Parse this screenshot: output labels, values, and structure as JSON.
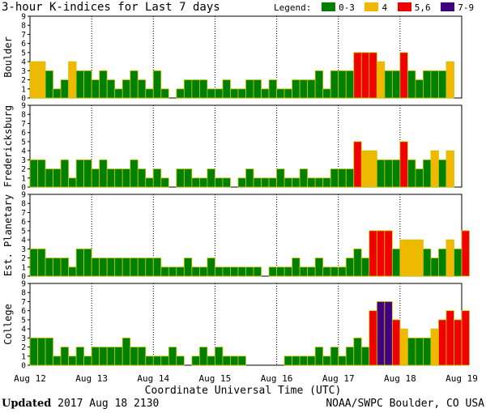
{
  "title": "3-hour K-indices for Last 7 days",
  "legend": {
    "label": "Legend:",
    "items": [
      {
        "label": "0-3",
        "color": "#008000"
      },
      {
        "label": "4",
        "color": "#f0b800"
      },
      {
        "label": "5,6",
        "color": "#f00000"
      },
      {
        "label": "7-9",
        "color": "#400080"
      }
    ]
  },
  "footer": {
    "updated_label": "Updated",
    "updated_value": "2017 Aug 18 2130",
    "credit": "NOAA/SWPC Boulder, CO USA"
  },
  "chart_data": {
    "type": "bar",
    "xlabel": "Coordinate Universal Time (UTC)",
    "x_tick_labels": [
      "Aug 12",
      "Aug 13",
      "Aug 14",
      "Aug 15",
      "Aug 16",
      "Aug 17",
      "Aug 18",
      "Aug 19"
    ],
    "ylim": [
      0,
      9
    ],
    "y_ticks": [
      0,
      1,
      2,
      3,
      4,
      5,
      6,
      7,
      8,
      9
    ],
    "intervals_per_day": 8,
    "color_scale": {
      "low_max": 3,
      "mid_value": 4,
      "high_max": 6
    },
    "panels": [
      {
        "name": "Boulder",
        "values": [
          4,
          4,
          3,
          1,
          2,
          4,
          3,
          3,
          2,
          3,
          2,
          1,
          2,
          3,
          2,
          1,
          3,
          1,
          0,
          1,
          2,
          2,
          2,
          1,
          1,
          2,
          1,
          1,
          2,
          2,
          1,
          2,
          1,
          1,
          2,
          2,
          2,
          3,
          1,
          3,
          3,
          3,
          5,
          5,
          5,
          4,
          3,
          3,
          5,
          3,
          2,
          3,
          3,
          3,
          4,
          0
        ]
      },
      {
        "name": "Fredericksburg",
        "values": [
          3,
          3,
          2,
          2,
          3,
          1,
          3,
          3,
          2,
          3,
          2,
          2,
          2,
          3,
          2,
          1,
          2,
          1,
          0,
          2,
          2,
          1,
          1,
          2,
          1,
          1,
          0,
          1,
          2,
          1,
          1,
          1,
          2,
          1,
          1,
          2,
          1,
          1,
          1,
          2,
          2,
          2,
          5,
          4,
          4,
          3,
          3,
          3,
          5,
          3,
          2,
          3,
          4,
          3,
          4,
          0
        ]
      },
      {
        "name": "Est. Planetary",
        "values": [
          3,
          3,
          2,
          2,
          2,
          1,
          3,
          3,
          2,
          2,
          2,
          2,
          2,
          2,
          2,
          2,
          2,
          1,
          1,
          1,
          2,
          1,
          1,
          2,
          1,
          1,
          1,
          1,
          1,
          1,
          0,
          1,
          1,
          1,
          2,
          1,
          1,
          2,
          1,
          1,
          1,
          2,
          3,
          2,
          5,
          5,
          5,
          3,
          4,
          4,
          4,
          3,
          2,
          3,
          4,
          3,
          5,
          0
        ]
      },
      {
        "name": "College",
        "values": [
          3,
          3,
          3,
          1,
          2,
          1,
          2,
          1,
          2,
          2,
          2,
          2,
          3,
          2,
          2,
          1,
          1,
          1,
          2,
          1,
          0,
          1,
          2,
          1,
          2,
          1,
          1,
          1,
          0,
          0,
          0,
          0,
          0,
          1,
          1,
          1,
          1,
          2,
          1,
          2,
          1,
          2,
          3,
          2,
          6,
          7,
          7,
          5,
          4,
          3,
          3,
          3,
          4,
          5,
          6,
          5,
          6,
          0
        ]
      }
    ]
  }
}
